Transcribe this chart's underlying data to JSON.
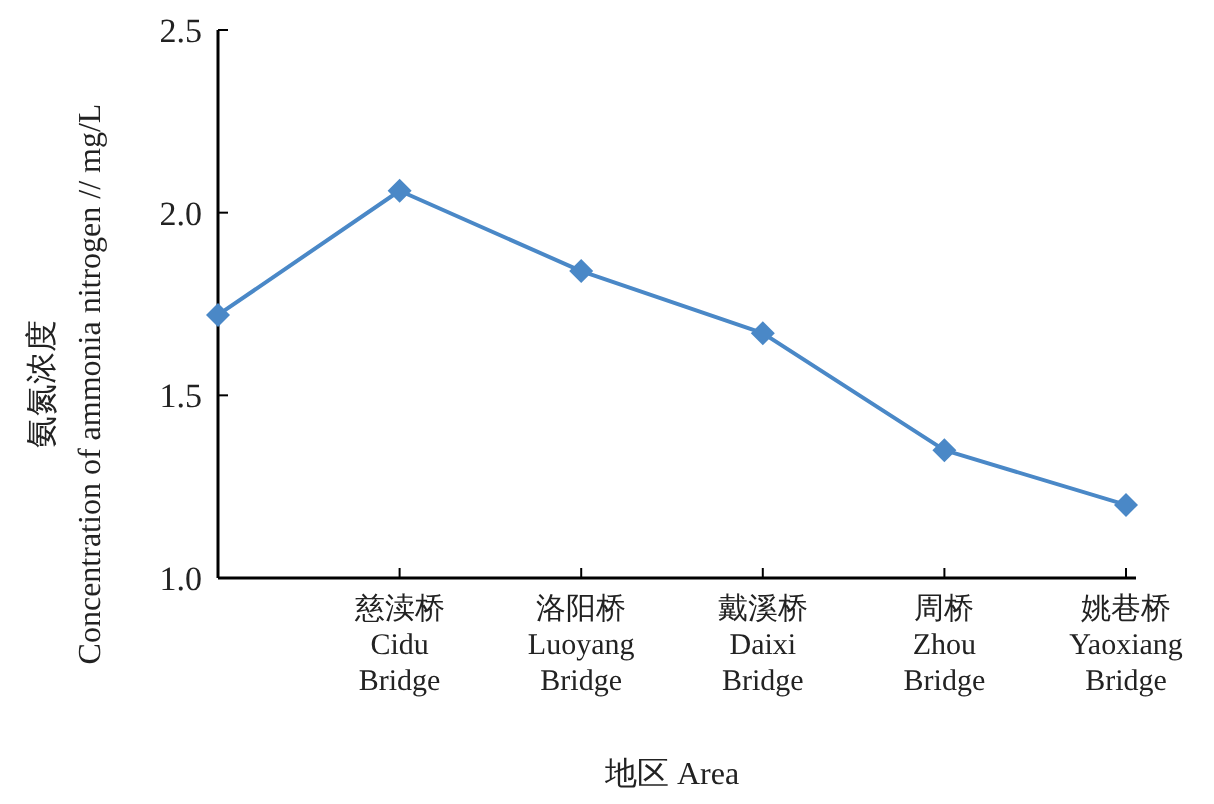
{
  "chart_data": {
    "type": "line",
    "xlabel": "地区 Area",
    "ylabel": "氨氮浓度\nConcentration of ammonia nitrogen // mg/L",
    "categories": [
      null,
      "慈渎桥\nCidu\nBridge",
      "洛阳桥\nLuoyang\nBridge",
      "戴溪桥\nDaixi\nBridge",
      "周桥\nZhou\nBridge",
      "姚巷桥\nYaoxiang\nBridge"
    ],
    "series": [
      {
        "color": "#4a88c7",
        "values": [
          1.72,
          2.06,
          1.84,
          1.67,
          1.35,
          1.2
        ]
      }
    ],
    "ylim": [
      1.0,
      2.5
    ],
    "yticks": [
      {
        "value": 1.0,
        "label": "1.0"
      },
      {
        "value": 1.5,
        "label": "1.5"
      },
      {
        "value": 2.0,
        "label": "2.0"
      },
      {
        "value": 2.5,
        "label": "2.5"
      }
    ],
    "marker": "diamond",
    "line_style": "solid",
    "grid": false
  }
}
